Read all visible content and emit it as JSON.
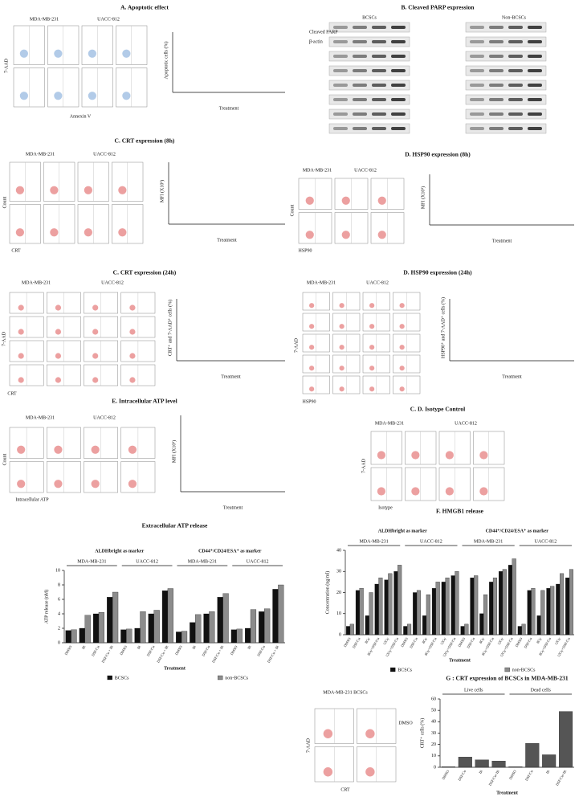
{
  "panels": [
    {
      "title": "A. Apoptotic effect",
      "labels": [
        "MDA-MB-231",
        "UACC-812",
        "7-AAD",
        "Annexin V"
      ],
      "y_label": "Apoptotic cells (%)",
      "x_label": "Treatment"
    },
    {
      "title": "B. Cleaved PARP expression",
      "labels": [
        "BCSCs",
        "Non-BCSCs",
        "Cleaved PARP",
        "β-actin"
      ]
    },
    {
      "title": "C. CRT expression (8h)",
      "labels": [
        "MDA-MB-231",
        "UACC-812",
        "Count",
        "CRT"
      ],
      "y_label": "MFI (X10³)",
      "x_label": "Treatment"
    },
    {
      "title": "D. HSP90 expression (8h)",
      "labels": [
        "MDA-MB-231",
        "UACC-812",
        "Count",
        "HSP90"
      ],
      "y_label": "MFI (X10³)",
      "x_label": "Treatment"
    },
    {
      "title": "C. CRT expression (24h)",
      "labels": [
        "MDA-MB-231",
        "UACC-812",
        "7-AAD",
        "CRT"
      ],
      "y_label": "CRT⁺ and 7-AAD⁺ cells (%)",
      "x_label": "Treatment"
    },
    {
      "title": "D. HSP90 expression (24h)",
      "labels": [
        "MDA-MB-231",
        "UACC-812",
        "7-AAD",
        "HSP90"
      ],
      "y_label": "HSP90⁺ and 7-AAD⁺ cells (%)",
      "x_label": "Treatment"
    },
    {
      "title": "E. Intracellular ATP level",
      "labels": [
        "MDA-MB-231",
        "UACC-812",
        "Count",
        "Intracellular ATP"
      ],
      "y_label": "MFI (X10³)",
      "x_label": "Treatment"
    },
    {
      "title": "C. D. Isotype Control",
      "labels": [
        "MDA-MB-231",
        "UACC-812",
        "7-AAD",
        "Isotype"
      ]
    },
    {
      "labels": [
        "MDA-MB-231 BCSCs",
        "DMSO",
        "7-AAD",
        "CRT"
      ]
    }
  ],
  "chart_data": [
    {
      "type": "bar",
      "title": "Extracellular ATP release",
      "y_label": "ATP release (nM)",
      "x_label": "Treatment",
      "group_headers": [
        "ALDHbright as marker",
        "CD44⁺/CD24/ESA⁺ as marker"
      ],
      "groups": [
        "MDA-MB-231",
        "UACC-812",
        "MDA-MB-231",
        "UACC-812"
      ],
      "categories": [
        "DMSO",
        "IR",
        "DSF/Cu",
        "DSF/Cu + IR",
        "DMSO",
        "IR",
        "DSF/Cu",
        "DSF/Cu + IR",
        "DMSO",
        "IR",
        "DSF/Cu",
        "DSF/Cu + IR",
        "DMSO",
        "IR",
        "DSF/Cu",
        "DSF/Cu + IR"
      ],
      "series": [
        {
          "name": "BCSCs",
          "color": "#111111",
          "values": [
            1.7,
            2.0,
            4.0,
            6.3,
            1.8,
            2.0,
            4.0,
            7.2,
            1.5,
            2.8,
            4.0,
            6.3,
            1.8,
            2.0,
            4.3,
            7.4
          ]
        },
        {
          "name": "non-BCSCs",
          "color": "#8c8c8c",
          "values": [
            1.8,
            3.8,
            4.2,
            7.0,
            1.9,
            4.3,
            4.5,
            7.5,
            1.6,
            3.9,
            4.3,
            6.8,
            1.9,
            4.6,
            4.7,
            8.0
          ]
        }
      ],
      "ylim": [
        0,
        10
      ],
      "yticks": [
        0,
        2,
        4,
        6,
        8,
        10
      ]
    },
    {
      "type": "bar",
      "title": "F. HMGB1 release",
      "y_label": "Concentration (ng/ml)",
      "x_label": "Treatment",
      "group_headers": [
        "ALDHbright as marker",
        "CD44⁺/CD24/ESA⁺ as marker"
      ],
      "groups": [
        "MDA-MB-231",
        "UACC-812",
        "MDA-MB-231",
        "UACC-812"
      ],
      "categories": [
        "DMSO",
        "DSF/Cu",
        "8Gy",
        "8Gy+DSF/Cu",
        "12Gy",
        "12Gy+DSF/Cu",
        "DMSO",
        "DSF/Cu",
        "8Gy",
        "8Gy+DSF/Cu",
        "12Gy",
        "12Gy+DSF/Cu",
        "DMSO",
        "DSF/Cu",
        "8Gy",
        "8Gy+DSF/Cu",
        "12Gy",
        "12Gy+DSF/Cu",
        "DMSO",
        "DSF/Cu",
        "8Gy",
        "8Gy+DSF/Cu",
        "12Gy",
        "12Gy+DSF/Cu"
      ],
      "series": [
        {
          "name": "BCSCs",
          "color": "#111111",
          "values": [
            4,
            21,
            9,
            24,
            26,
            30,
            4,
            20,
            9,
            22,
            25,
            28,
            4,
            27,
            10,
            25,
            30,
            33,
            4,
            21,
            9,
            22,
            24,
            27
          ]
        },
        {
          "name": "non-BCSCs",
          "color": "#8c8c8c",
          "values": [
            5,
            22,
            20,
            27,
            29,
            33,
            5,
            21,
            19,
            25,
            27,
            30,
            5,
            28,
            19,
            27,
            31,
            36,
            5,
            22,
            21,
            23,
            29,
            31
          ]
        }
      ],
      "ylim": [
        0,
        40
      ],
      "yticks": [
        0,
        10,
        20,
        30,
        40
      ]
    },
    {
      "type": "bar",
      "title": "G : CRT expression of BCSCs in MDA-MB-231",
      "y_label": "CRT⁺ cells (%)",
      "x_label": "Treatment",
      "groups": [
        "Live cells",
        "Dead cells"
      ],
      "categories": [
        "DMSO",
        "DSF/Cu",
        "IR",
        "DSF/Cu+IR",
        "DMSO",
        "DSF/Cu",
        "IR",
        "DSF/Cu+IR"
      ],
      "series": [
        {
          "color": "#555555",
          "values": [
            0.5,
            9,
            6.5,
            5.5,
            0.5,
            21,
            11,
            49
          ]
        }
      ],
      "ylim": [
        0,
        60
      ],
      "yticks": [
        0,
        10,
        20,
        30,
        40,
        50,
        60
      ]
    }
  ]
}
